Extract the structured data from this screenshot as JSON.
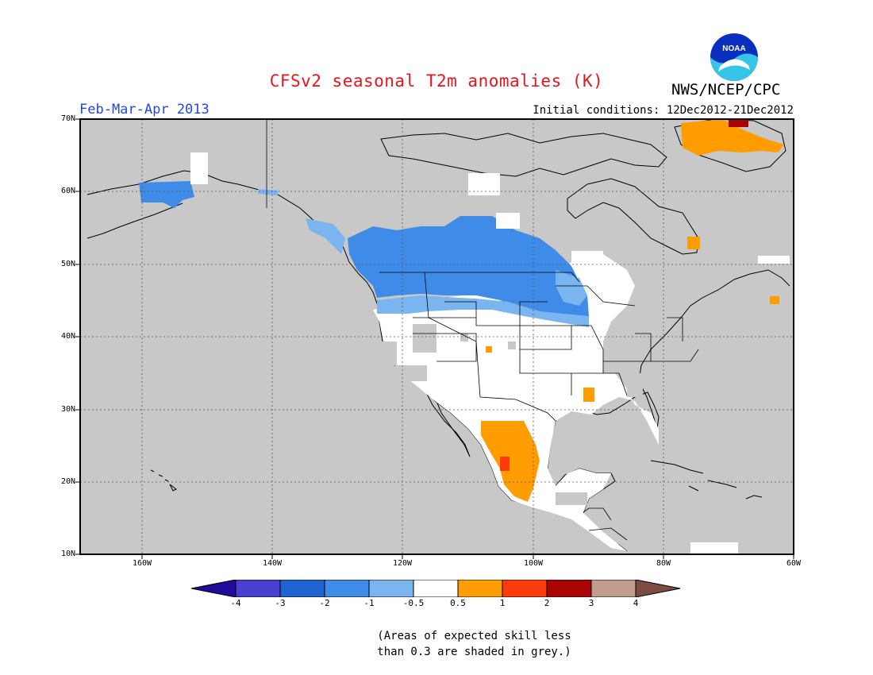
{
  "title": "CFSv2 seasonal T2m anomalies (K)",
  "organization": "NWS/NCEP/CPC",
  "logo_text": "NOAA",
  "period": "Feb-Mar-Apr 2013",
  "initial_conditions": "Initial conditions: 12Dec2012-21Dec2012",
  "lat_labels": [
    "70N",
    "60N",
    "50N",
    "40N",
    "30N",
    "20N",
    "10N"
  ],
  "lon_labels": [
    "160W",
    "140W",
    "120W",
    "100W",
    "80W",
    "60W"
  ],
  "colorbar": {
    "labels": [
      "-4",
      "-3",
      "-2",
      "-1",
      "-0.5",
      "0.5",
      "1",
      "2",
      "3",
      "4"
    ],
    "colors": [
      "#1f0c9a",
      "#4a3fd0",
      "#1e63cf",
      "#3e8ce8",
      "#7bb5f0",
      "#ffffff",
      "#ff9c00",
      "#fc3c0c",
      "#a80404",
      "#c29c8c",
      "#7c4c40"
    ]
  },
  "note_lines": [
    "(Areas of expected skill less",
    "than 0.3 are shaded in grey.)"
  ],
  "map_colors": {
    "background": "#c8c8c8",
    "land_outline": "#000000",
    "anomaly_neutral": "#ffffff"
  }
}
